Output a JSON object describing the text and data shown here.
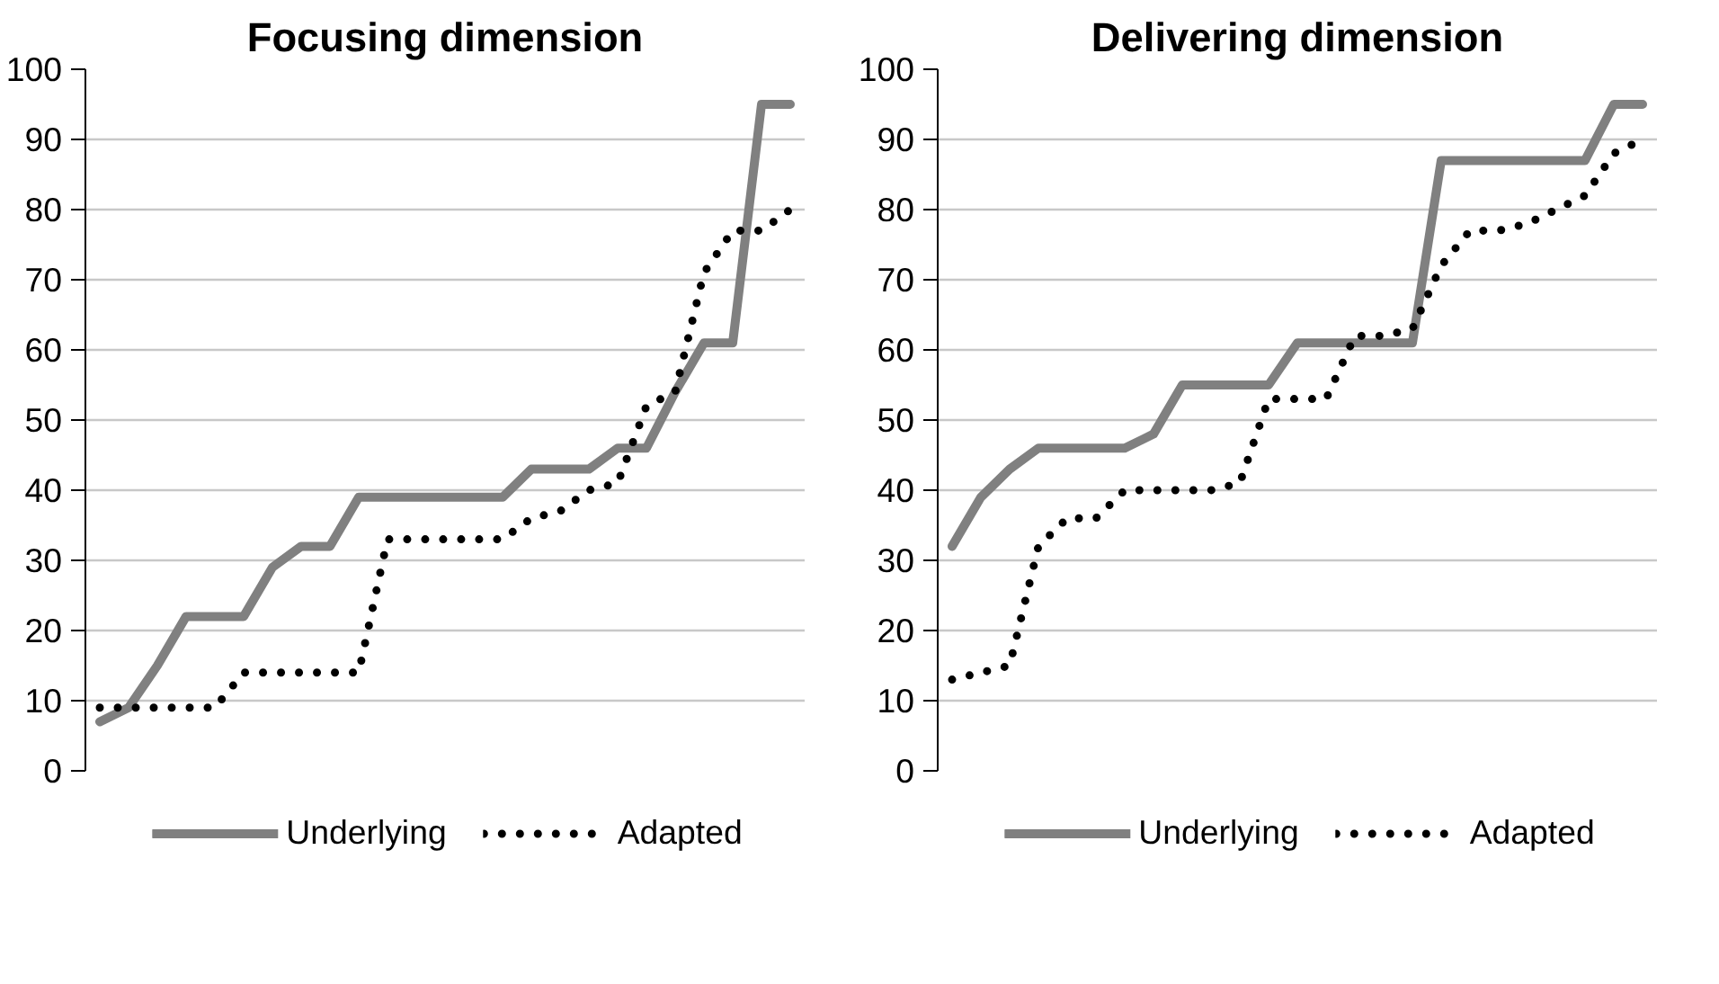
{
  "chart_data": [
    {
      "type": "line",
      "title": "Focusing dimension",
      "categories": [
        null,
        null,
        null,
        null,
        null,
        null,
        null,
        null,
        null,
        null,
        null,
        null,
        null,
        null,
        null,
        null,
        null,
        null,
        null,
        null,
        null,
        null,
        null,
        null,
        null
      ],
      "ylim": [
        0,
        100
      ],
      "yticks": [
        0,
        10,
        20,
        30,
        40,
        50,
        60,
        70,
        80,
        90,
        100
      ],
      "grid": "y",
      "legend": "bottom",
      "tick_labels": "y",
      "series": [
        {
          "name": "Underlying",
          "color": "#808080",
          "line_style": "solid",
          "values": [
            7,
            9,
            15,
            22,
            22,
            22,
            29,
            32,
            32,
            39,
            39,
            39,
            39,
            39,
            39,
            43,
            43,
            43,
            46,
            46,
            54,
            61,
            61,
            95,
            95
          ]
        },
        {
          "name": "Adapted",
          "color": "#000000",
          "line_style": "dotted",
          "values": [
            9,
            9,
            9,
            9,
            9,
            14,
            14,
            14,
            14,
            14,
            33,
            33,
            33,
            33,
            33,
            36,
            37,
            40,
            41,
            52,
            54,
            71,
            77,
            77,
            80
          ]
        }
      ]
    },
    {
      "type": "line",
      "title": "Delivering dimension",
      "categories": [
        null,
        null,
        null,
        null,
        null,
        null,
        null,
        null,
        null,
        null,
        null,
        null,
        null,
        null,
        null,
        null,
        null,
        null,
        null,
        null,
        null,
        null,
        null,
        null,
        null
      ],
      "ylim": [
        0,
        100
      ],
      "yticks": [
        0,
        10,
        20,
        30,
        40,
        50,
        60,
        70,
        80,
        90,
        100
      ],
      "grid": "y",
      "legend": "bottom",
      "tick_labels": "y",
      "series": [
        {
          "name": "Underlying",
          "color": "#808080",
          "line_style": "solid",
          "values": [
            32,
            39,
            43,
            46,
            46,
            46,
            46,
            48,
            55,
            55,
            55,
            55,
            61,
            61,
            61,
            61,
            61,
            87,
            87,
            87,
            87,
            87,
            87,
            95,
            95
          ]
        },
        {
          "name": "Adapted",
          "color": "#000000",
          "line_style": "dotted",
          "values": [
            13,
            14,
            15,
            32,
            36,
            36,
            40,
            40,
            40,
            40,
            41,
            53,
            53,
            53,
            62,
            62,
            63,
            72,
            77,
            77,
            78,
            80,
            82,
            88,
            90
          ]
        }
      ]
    }
  ]
}
